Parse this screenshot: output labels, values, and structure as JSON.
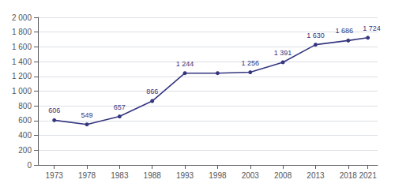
{
  "chart_data": {
    "type": "line",
    "x": [
      1973,
      1978,
      1983,
      1988,
      1993,
      1998,
      2003,
      2008,
      2013,
      2018,
      2021
    ],
    "values": [
      606,
      549,
      657,
      866,
      1244,
      1244,
      1256,
      1391,
      1630,
      1686,
      1724
    ],
    "data_labels": true,
    "value_labels": [
      "606",
      "549",
      "657",
      "866",
      "1 244",
      null,
      "1 256",
      "1 391",
      "1 630",
      "1 686",
      "1 724"
    ],
    "color": "#353680",
    "marker": "circle",
    "xlim": [
      1970.5,
      2022.5
    ],
    "xticks": [
      1973,
      1978,
      1983,
      1988,
      1993,
      1998,
      2003,
      2008,
      2013,
      2018,
      2021
    ],
    "ylim": [
      0,
      2000
    ],
    "yticks": [
      0,
      200,
      400,
      600,
      800,
      {
        "value": 1000,
        "label": "1 000"
      },
      {
        "value": 1200,
        "label": "1 200"
      },
      {
        "value": 1400,
        "label": "1 400"
      },
      {
        "value": 1600,
        "label": "1 600"
      },
      {
        "value": 1800,
        "label": "1 800"
      },
      {
        "value": 2000,
        "label": "2 000"
      }
    ],
    "grid": "y"
  }
}
